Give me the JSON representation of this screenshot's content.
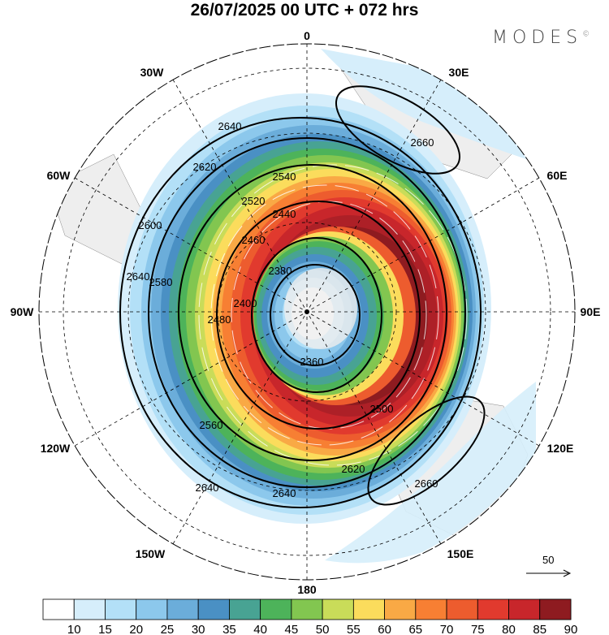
{
  "title": "26/07/2025  00 UTC  + 072 hrs",
  "brand": "MODES",
  "brand_mark": "©",
  "longitude_labels": {
    "l0": "0",
    "l30e": "30E",
    "l60e": "60E",
    "l90e": "90E",
    "l120e": "120E",
    "l150e": "150E",
    "l180": "180",
    "l150w": "150W",
    "l120w": "120W",
    "l90w": "90W",
    "l60w": "60W",
    "l30w": "30W"
  },
  "contour_labels": [
    "2640",
    "2660",
    "2620",
    "2540",
    "2440",
    "2520",
    "2460",
    "2380",
    "2600",
    "2580",
    "2400",
    "2480",
    "2360",
    "2500",
    "2560",
    "2640",
    "2620",
    "2660",
    "2640",
    "2640"
  ],
  "reference_vector": "50",
  "colorbar": {
    "colors": [
      "#ffffff",
      "#d6eefb",
      "#b3e0f7",
      "#8cc8ec",
      "#6badda",
      "#4a90c4",
      "#48a393",
      "#4db35a",
      "#82c650",
      "#c9dc59",
      "#fbdc5c",
      "#f9a945",
      "#f77f33",
      "#ed5c2e",
      "#e13a2e",
      "#c8262b",
      "#ad2027",
      "#8e1b20"
    ],
    "labels": [
      "10",
      "15",
      "20",
      "25",
      "30",
      "35",
      "40",
      "45",
      "50",
      "55",
      "60",
      "65",
      "70",
      "75",
      "80",
      "85",
      "90"
    ]
  }
}
